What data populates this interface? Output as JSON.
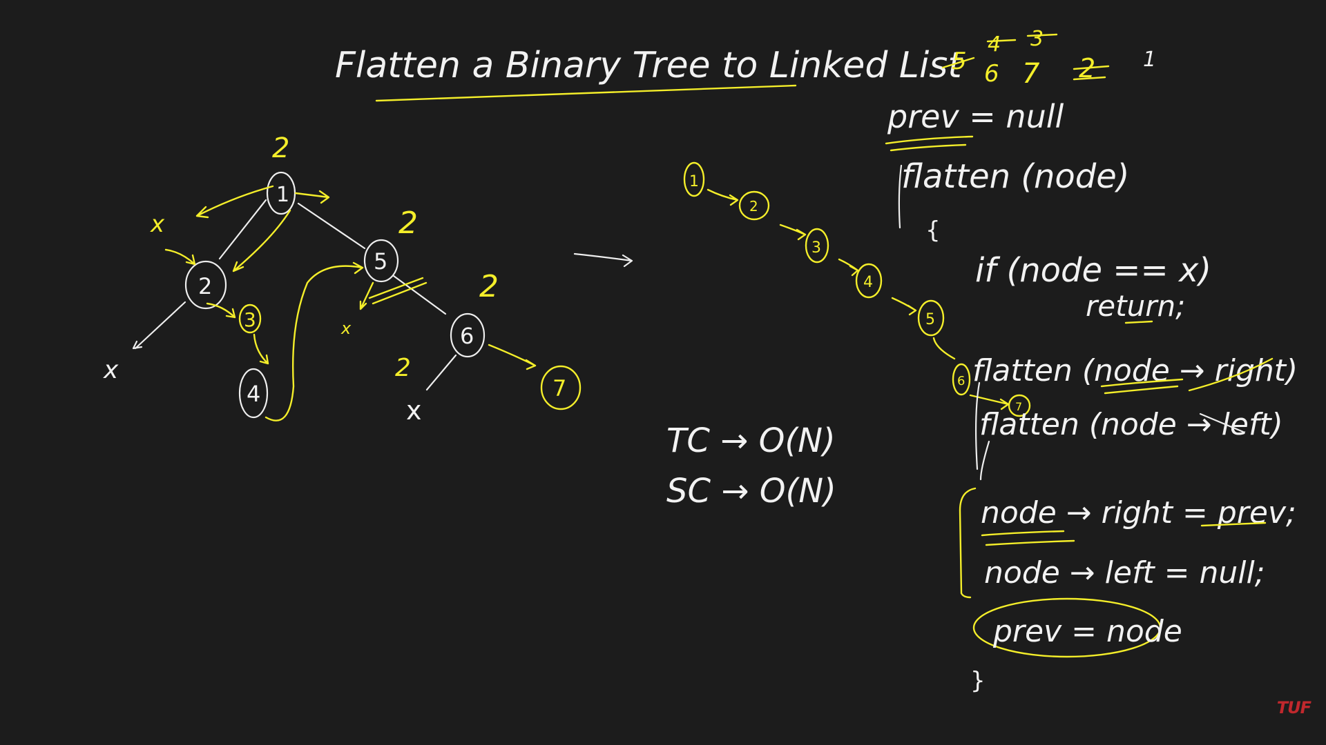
{
  "title": "Flatten a Binary Tree to Linked List",
  "tree": {
    "nodes": [
      {
        "id": "n1",
        "label": "1"
      },
      {
        "id": "n2",
        "label": "2"
      },
      {
        "id": "n3",
        "label": "3"
      },
      {
        "id": "n4",
        "label": "4"
      },
      {
        "id": "n5",
        "label": "5"
      },
      {
        "id": "n6",
        "label": "6"
      },
      {
        "id": "n7",
        "label": "7"
      }
    ],
    "nulls": [
      "x",
      "x",
      "x",
      "x"
    ],
    "marks": [
      "2",
      "2",
      "2",
      "2"
    ]
  },
  "list": [
    "1",
    "2",
    "3",
    "4",
    "5",
    "6",
    "7"
  ],
  "complexity": {
    "time": "TC → O(N)",
    "space": "SC → O(N)"
  },
  "code": {
    "prev_init": "prev = null",
    "signature": "flatten (node)",
    "open_brace": "{",
    "if_line": "if (node == x)",
    "return_line": "return;",
    "call_right": "flatten (node → right)",
    "call_left": "flatten (node → left)",
    "assign_right": "node → right = prev;",
    "assign_left": "node → left = null;",
    "assign_prev": "prev = node",
    "close_brace": "}"
  },
  "stack_note": {
    "crossed": [
      "5",
      "6"
    ],
    "top": [
      "4",
      "3"
    ],
    "mid": [
      "7"
    ],
    "two": "2",
    "one": "1"
  },
  "brand": "TUF"
}
